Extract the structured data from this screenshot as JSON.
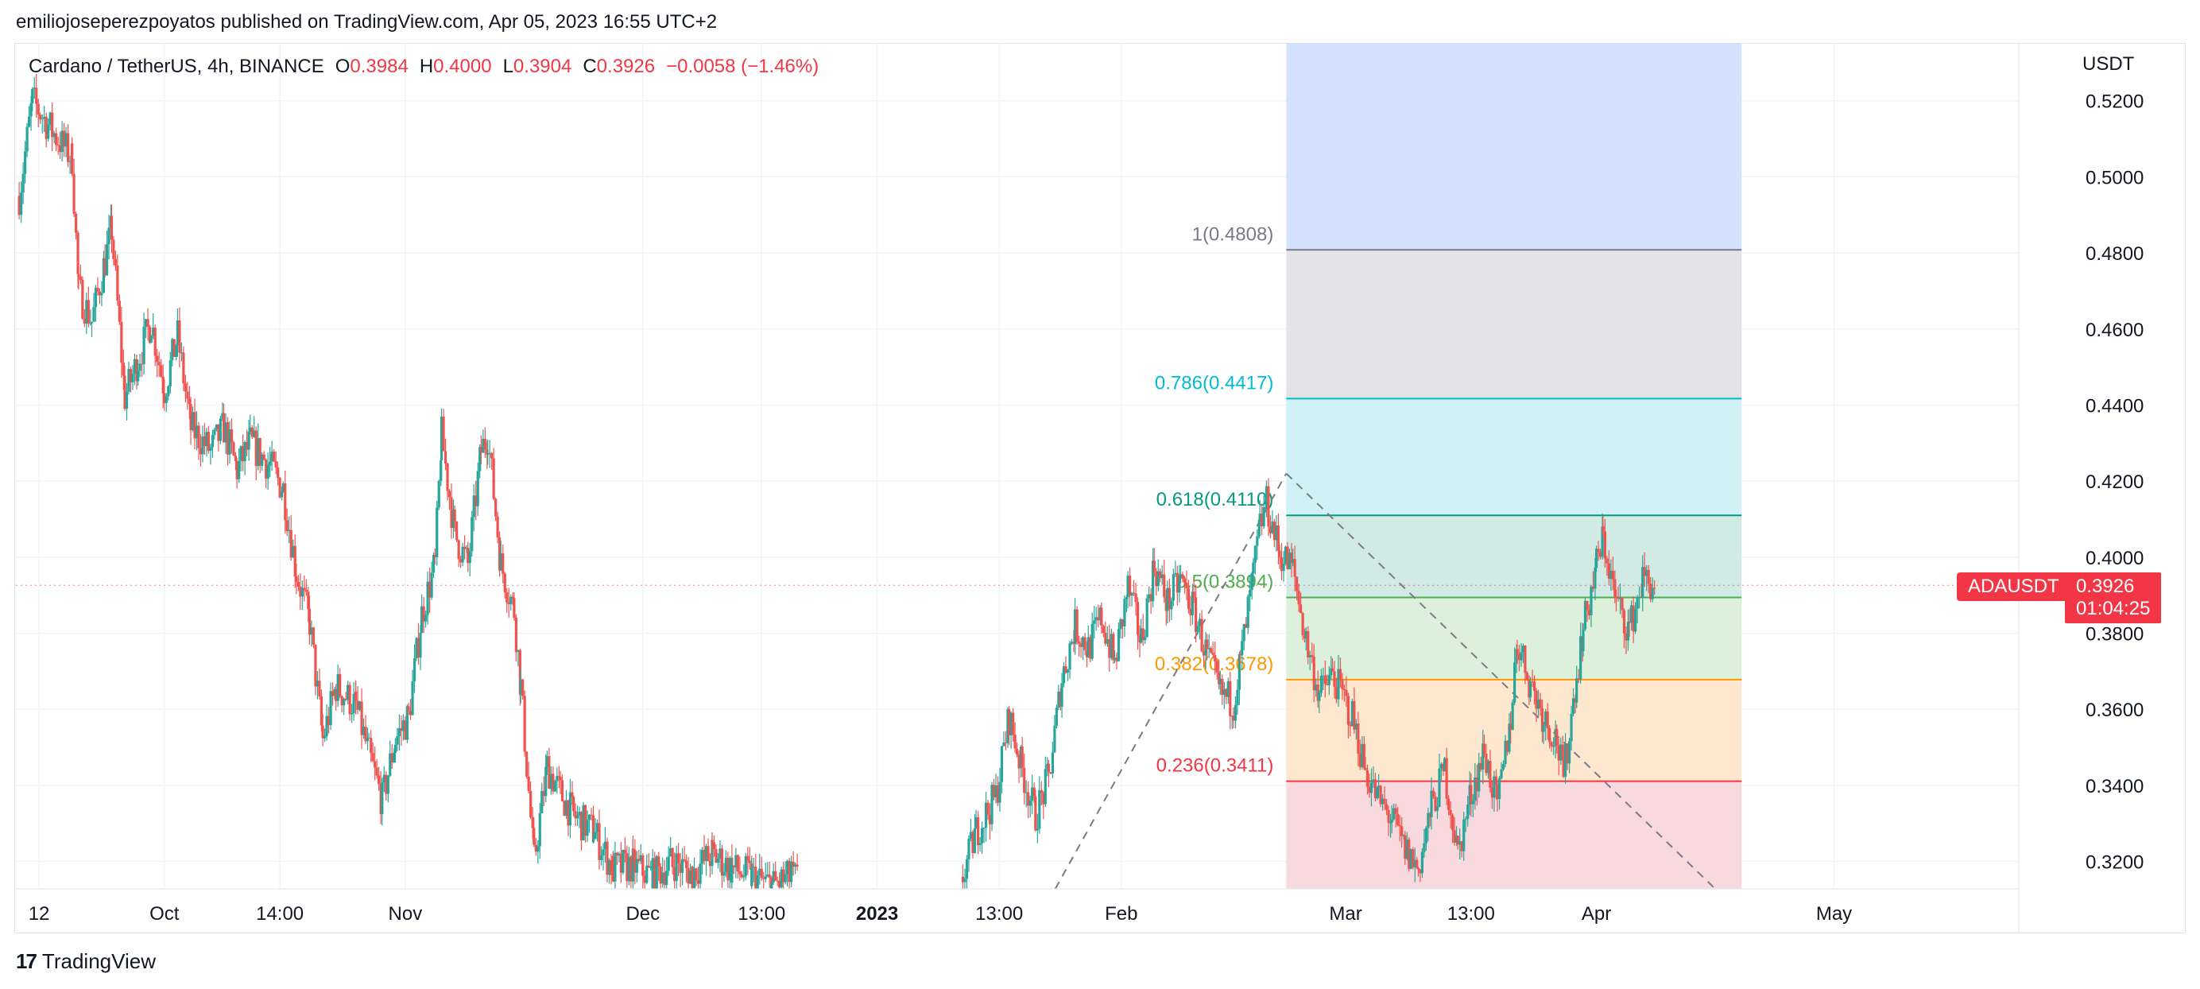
{
  "publisher": "emiliojoseperezpoyatos published on TradingView.com, Apr 05, 2023 16:55 UTC+2",
  "legend": {
    "symbol": "Cardano / TetherUS, 4h, BINANCE",
    "open_label": "O",
    "open": "0.3984",
    "high_label": "H",
    "high": "0.4000",
    "low_label": "L",
    "low": "0.3904",
    "close_label": "C",
    "close": "0.3926",
    "change": "−0.0058 (−1.46%)"
  },
  "branding": {
    "logo_mark": "17",
    "logo_text": "TradingView"
  },
  "price_tag": {
    "ticker": "ADAUSDT",
    "price": "0.3926",
    "countdown": "01:04:25"
  },
  "colors": {
    "up": "#26a69a",
    "down": "#ef5350",
    "accent": "#f23645"
  },
  "chart_data": {
    "type": "candlestick",
    "y_axis_label": "USDT",
    "y_ticks": [
      0.52,
      0.5,
      0.48,
      0.46,
      0.44,
      0.42,
      0.4,
      0.38,
      0.36,
      0.34,
      0.32
    ],
    "y_tick_labels": [
      "0.5200",
      "0.5000",
      "0.4800",
      "0.4600",
      "0.4400",
      "0.4200",
      "0.4000",
      "0.3800",
      "0.3600",
      "0.3400",
      "0.3200"
    ],
    "ylim": [
      0.3128,
      0.5352
    ],
    "x_ticks": [
      {
        "label": "12",
        "day": 0,
        "bold": false
      },
      {
        "label": "Oct",
        "day": 19,
        "bold": false
      },
      {
        "label": "14:00",
        "day": 36.5,
        "bold": false
      },
      {
        "label": "Nov",
        "day": 55.5,
        "bold": false
      },
      {
        "label": "Dec",
        "day": 91.5,
        "bold": false
      },
      {
        "label": "13:00",
        "day": 109.5,
        "bold": false
      },
      {
        "label": "2023",
        "day": 127,
        "bold": true
      },
      {
        "label": "13:00",
        "day": 145.5,
        "bold": false
      },
      {
        "label": "Feb",
        "day": 164,
        "bold": false
      },
      {
        "label": "Mar",
        "day": 198,
        "bold": false
      },
      {
        "label": "13:00",
        "day": 217,
        "bold": false
      },
      {
        "label": "Apr",
        "day": 236,
        "bold": false
      },
      {
        "label": "May",
        "day": 272,
        "bold": false
      }
    ],
    "xlim": [
      -3.5,
      300
    ],
    "grid": true,
    "close_series": [
      {
        "day": -3,
        "close": 0.495
      },
      {
        "day": -1,
        "close": 0.52
      },
      {
        "day": 2,
        "close": 0.512
      },
      {
        "day": 5,
        "close": 0.505
      },
      {
        "day": 6,
        "close": 0.47
      },
      {
        "day": 8,
        "close": 0.462
      },
      {
        "day": 10,
        "close": 0.478
      },
      {
        "day": 11,
        "close": 0.486
      },
      {
        "day": 13,
        "close": 0.442
      },
      {
        "day": 15,
        "close": 0.452
      },
      {
        "day": 17,
        "close": 0.462
      },
      {
        "day": 19,
        "close": 0.444
      },
      {
        "day": 21,
        "close": 0.458
      },
      {
        "day": 23,
        "close": 0.434
      },
      {
        "day": 26,
        "close": 0.428
      },
      {
        "day": 28,
        "close": 0.434
      },
      {
        "day": 30,
        "close": 0.423
      },
      {
        "day": 32,
        "close": 0.43
      },
      {
        "day": 35,
        "close": 0.424
      },
      {
        "day": 37,
        "close": 0.418
      },
      {
        "day": 39,
        "close": 0.396
      },
      {
        "day": 41,
        "close": 0.383
      },
      {
        "day": 43,
        "close": 0.352
      },
      {
        "day": 45,
        "close": 0.366
      },
      {
        "day": 48,
        "close": 0.361
      },
      {
        "day": 50,
        "close": 0.348
      },
      {
        "day": 52,
        "close": 0.336
      },
      {
        "day": 54,
        "close": 0.352
      },
      {
        "day": 56,
        "close": 0.358
      },
      {
        "day": 58,
        "close": 0.385
      },
      {
        "day": 60,
        "close": 0.398
      },
      {
        "day": 61,
        "close": 0.432
      },
      {
        "day": 63,
        "close": 0.406
      },
      {
        "day": 65,
        "close": 0.398
      },
      {
        "day": 67,
        "close": 0.428
      },
      {
        "day": 68,
        "close": 0.432
      },
      {
        "day": 70,
        "close": 0.398
      },
      {
        "day": 72,
        "close": 0.386
      },
      {
        "day": 73,
        "close": 0.366
      },
      {
        "day": 75,
        "close": 0.32
      },
      {
        "day": 77,
        "close": 0.345
      },
      {
        "day": 79,
        "close": 0.338
      },
      {
        "day": 81,
        "close": 0.332
      },
      {
        "day": 84,
        "close": 0.328
      },
      {
        "day": 87,
        "close": 0.318
      },
      {
        "day": 90,
        "close": 0.319
      },
      {
        "day": 93,
        "close": 0.316
      },
      {
        "day": 96,
        "close": 0.32
      },
      {
        "day": 99,
        "close": 0.317
      },
      {
        "day": 102,
        "close": 0.322
      },
      {
        "day": 105,
        "close": 0.318
      },
      {
        "day": 108,
        "close": 0.316
      },
      {
        "day": 111,
        "close": 0.3135
      },
      {
        "day": 114,
        "close": 0.316
      },
      {
        "day": 115,
        "close": 0.315
      },
      {
        "day": 140,
        "close": 0.316
      },
      {
        "day": 142,
        "close": 0.328
      },
      {
        "day": 145,
        "close": 0.337
      },
      {
        "day": 147,
        "close": 0.358
      },
      {
        "day": 149,
        "close": 0.344
      },
      {
        "day": 151,
        "close": 0.332
      },
      {
        "day": 153,
        "close": 0.342
      },
      {
        "day": 155,
        "close": 0.368
      },
      {
        "day": 157,
        "close": 0.382
      },
      {
        "day": 159,
        "close": 0.376
      },
      {
        "day": 161,
        "close": 0.384
      },
      {
        "day": 163,
        "close": 0.372
      },
      {
        "day": 165,
        "close": 0.392
      },
      {
        "day": 167,
        "close": 0.378
      },
      {
        "day": 169,
        "close": 0.398
      },
      {
        "day": 171,
        "close": 0.388
      },
      {
        "day": 173,
        "close": 0.394
      },
      {
        "day": 175,
        "close": 0.386
      },
      {
        "day": 177,
        "close": 0.374
      },
      {
        "day": 179,
        "close": 0.364
      },
      {
        "day": 181,
        "close": 0.362
      },
      {
        "day": 182,
        "close": 0.372
      },
      {
        "day": 184,
        "close": 0.395
      },
      {
        "day": 185,
        "close": 0.408
      },
      {
        "day": 186,
        "close": 0.414
      },
      {
        "day": 188,
        "close": 0.401
      },
      {
        "day": 190,
        "close": 0.397
      },
      {
        "day": 192,
        "close": 0.378
      },
      {
        "day": 194,
        "close": 0.364
      },
      {
        "day": 196,
        "close": 0.369
      },
      {
        "day": 199,
        "close": 0.358
      },
      {
        "day": 201,
        "close": 0.344
      },
      {
        "day": 203,
        "close": 0.336
      },
      {
        "day": 205,
        "close": 0.331
      },
      {
        "day": 207,
        "close": 0.323
      },
      {
        "day": 209,
        "close": 0.318
      },
      {
        "day": 211,
        "close": 0.334
      },
      {
        "day": 213,
        "close": 0.344
      },
      {
        "day": 215,
        "close": 0.322
      },
      {
        "day": 217,
        "close": 0.338
      },
      {
        "day": 219,
        "close": 0.349
      },
      {
        "day": 221,
        "close": 0.334
      },
      {
        "day": 223,
        "close": 0.358
      },
      {
        "day": 224,
        "close": 0.378
      },
      {
        "day": 226,
        "close": 0.367
      },
      {
        "day": 228,
        "close": 0.358
      },
      {
        "day": 230,
        "close": 0.352
      },
      {
        "day": 231,
        "close": 0.342
      },
      {
        "day": 233,
        "close": 0.369
      },
      {
        "day": 234,
        "close": 0.381
      },
      {
        "day": 236,
        "close": 0.398
      },
      {
        "day": 237,
        "close": 0.405
      },
      {
        "day": 239,
        "close": 0.388
      },
      {
        "day": 241,
        "close": 0.381
      },
      {
        "day": 243,
        "close": 0.394
      },
      {
        "day": 245,
        "close": 0.3926
      }
    ],
    "fibonacci": {
      "start_day": 189,
      "end_day": 258,
      "levels": [
        {
          "ratio": "1",
          "price": 0.4808,
          "label": "1(0.4808)",
          "line": "#787b86",
          "fill": "#e1e2e4",
          "label_color": "#787b86"
        },
        {
          "ratio": "0.786",
          "price": 0.4417,
          "label": "0.786(0.4417)",
          "line": "#00bcd4",
          "fill": "#cdf0f4",
          "label_color": "#00bcd4"
        },
        {
          "ratio": "0.618",
          "price": 0.411,
          "label": "0.618(0.4110)",
          "line": "#089981",
          "fill": "#cfe9e1",
          "label_color": "#089981"
        },
        {
          "ratio": "0.5",
          "price": 0.3894,
          "label": "0.5(0.3894)",
          "line": "#4caf50",
          "fill": "#dbefd9",
          "label_color": "#4caf50"
        },
        {
          "ratio": "0.382",
          "price": 0.3678,
          "label": "0.382(0.3678)",
          "line": "#ff9800",
          "fill": "#fde6cc",
          "label_color": "#ff9800"
        },
        {
          "ratio": "0.236",
          "price": 0.3411,
          "label": "0.236(0.3411)",
          "line": "#f23645",
          "fill": "#f8d7db",
          "label_color": "#f23645"
        }
      ],
      "top_fill": "#d2dffd",
      "top_price": 0.5352,
      "bottom_price": 0.3128
    },
    "trend_lines": [
      {
        "from": {
          "day": 154,
          "price": 0.3128
        },
        "to": {
          "day": 189,
          "price": 0.422
        }
      },
      {
        "from": {
          "day": 189,
          "price": 0.422
        },
        "to": {
          "day": 254,
          "price": 0.3128
        }
      }
    ]
  }
}
